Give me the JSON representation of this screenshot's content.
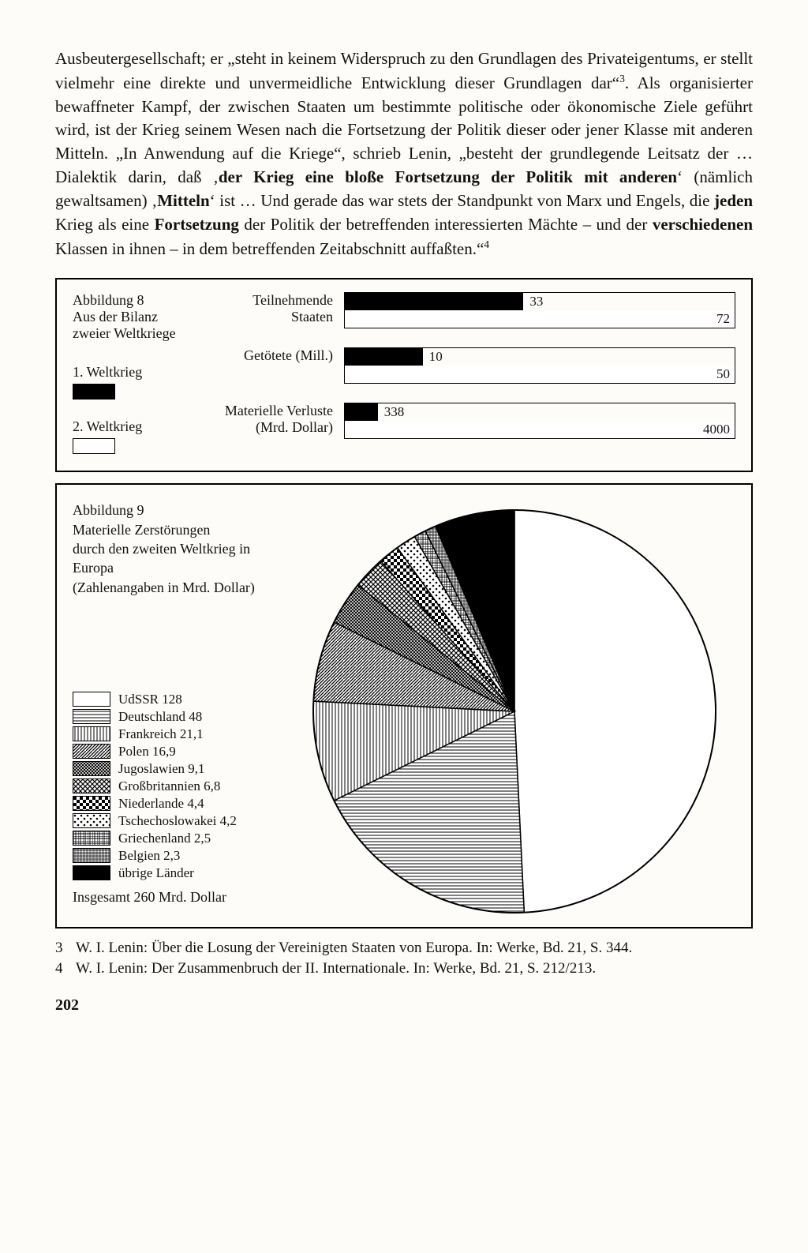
{
  "body_text_html": "Ausbeutergesellschaft; er „steht in keinem Widerspruch zu den Grundlagen des Privateigentums, er stellt vielmehr eine direkte und unvermeidliche Entwicklung dieser Grundlagen dar“<span class='sup'>3</span>. Als organisierter bewaffneter Kampf, der zwischen Staaten um bestimmte politische oder ökonomische Ziele geführt wird, ist der Krieg seinem Wesen nach die Fortsetzung der Politik dieser oder jener Klasse mit anderen Mitteln. „In Anwendung auf die Kriege“, schrieb Lenin, „besteht der grundlegende Leitsatz der … Dialektik darin, daß ‚<span class='bold'>der Krieg eine bloße Fortsetzung der Politik mit anderen</span>‘ (nämlich gewaltsamen) ‚<span class='bold'>Mitteln</span>‘ ist … Und gerade das war stets der Standpunkt von Marx und Engels, die <span class='bold'>jeden</span> Krieg als eine <span class='bold'>Fortsetzung</span> der Politik der betreffenden interessierten Mächte – und der <span class='bold'>verschiedenen</span> Klassen in ihnen – in dem betreffenden Zeitabschnitt auffaßten.“<span class='sup'>4</span>",
  "fig8": {
    "caption_l1": "Abbildung 8",
    "caption_l2": "Aus der Bilanz",
    "caption_l3": "zweier Weltkriege",
    "legend1": "1. Weltkrieg",
    "legend2": "2. Weltkrieg",
    "legend_colors": [
      "#000000",
      "#ffffff"
    ],
    "rows": [
      {
        "label_l1": "Teilnehmende",
        "label_l2": "Staaten",
        "v1": 33,
        "v2": 72,
        "max": 72
      },
      {
        "label_l1": "Getötete (Mill.)",
        "label_l2": "",
        "v1": 10,
        "v2": 50,
        "max": 50
      },
      {
        "label_l1": "Materielle Verluste",
        "label_l2": "(Mrd. Dollar)",
        "v1": 338,
        "v2": 4000,
        "max": 4000
      }
    ],
    "bar_colors": {
      "ww1": "#000000",
      "ww2": "#ffffff"
    },
    "border_color": "#000000"
  },
  "fig9": {
    "caption_l1": "Abbildung 9",
    "caption_l2": "Materielle Zerstörungen",
    "caption_l3": "durch den zweiten Weltkrieg in Europa",
    "caption_l4": "(Zahlenangaben in Mrd. Dollar)",
    "total_label": "Insgesamt 260 Mrd. Dollar",
    "total": 260,
    "slices": [
      {
        "label": "UdSSR 128",
        "value": 128,
        "pattern": "blank"
      },
      {
        "label": "Deutschland 48",
        "value": 48,
        "pattern": "hlines"
      },
      {
        "label": "Frankreich 21,1",
        "value": 21.1,
        "pattern": "vlines"
      },
      {
        "label": "Polen 16,9",
        "value": 16.9,
        "pattern": "diag"
      },
      {
        "label": "Jugoslawien 9,1",
        "value": 9.1,
        "pattern": "diag2"
      },
      {
        "label": "Großbritannien 6,8",
        "value": 6.8,
        "pattern": "crosshatch"
      },
      {
        "label": "Niederlande 4,4",
        "value": 4.4,
        "pattern": "checker"
      },
      {
        "label": "Tschechoslowakei 4,2",
        "value": 4.2,
        "pattern": "dots"
      },
      {
        "label": "Griechenland 2,5",
        "value": 2.5,
        "pattern": "grid"
      },
      {
        "label": "Belgien 2,3",
        "value": 2.3,
        "pattern": "finegrid"
      },
      {
        "label": "übrige Länder",
        "value": 16.7,
        "pattern": "solid"
      }
    ],
    "pie_radius": 255,
    "stroke_color": "#000000",
    "bg_color": "#ffffff"
  },
  "footnotes": [
    {
      "n": "3",
      "text": "W. I. Lenin: Über die Losung der Vereinigten Staaten von Europa. In: Werke, Bd. 21, S. 344."
    },
    {
      "n": "4",
      "text": "W. I. Lenin: Der Zusammenbruch der II. Internationale. In: Werke, Bd. 21, S. 212/213."
    }
  ],
  "page_number": "202"
}
